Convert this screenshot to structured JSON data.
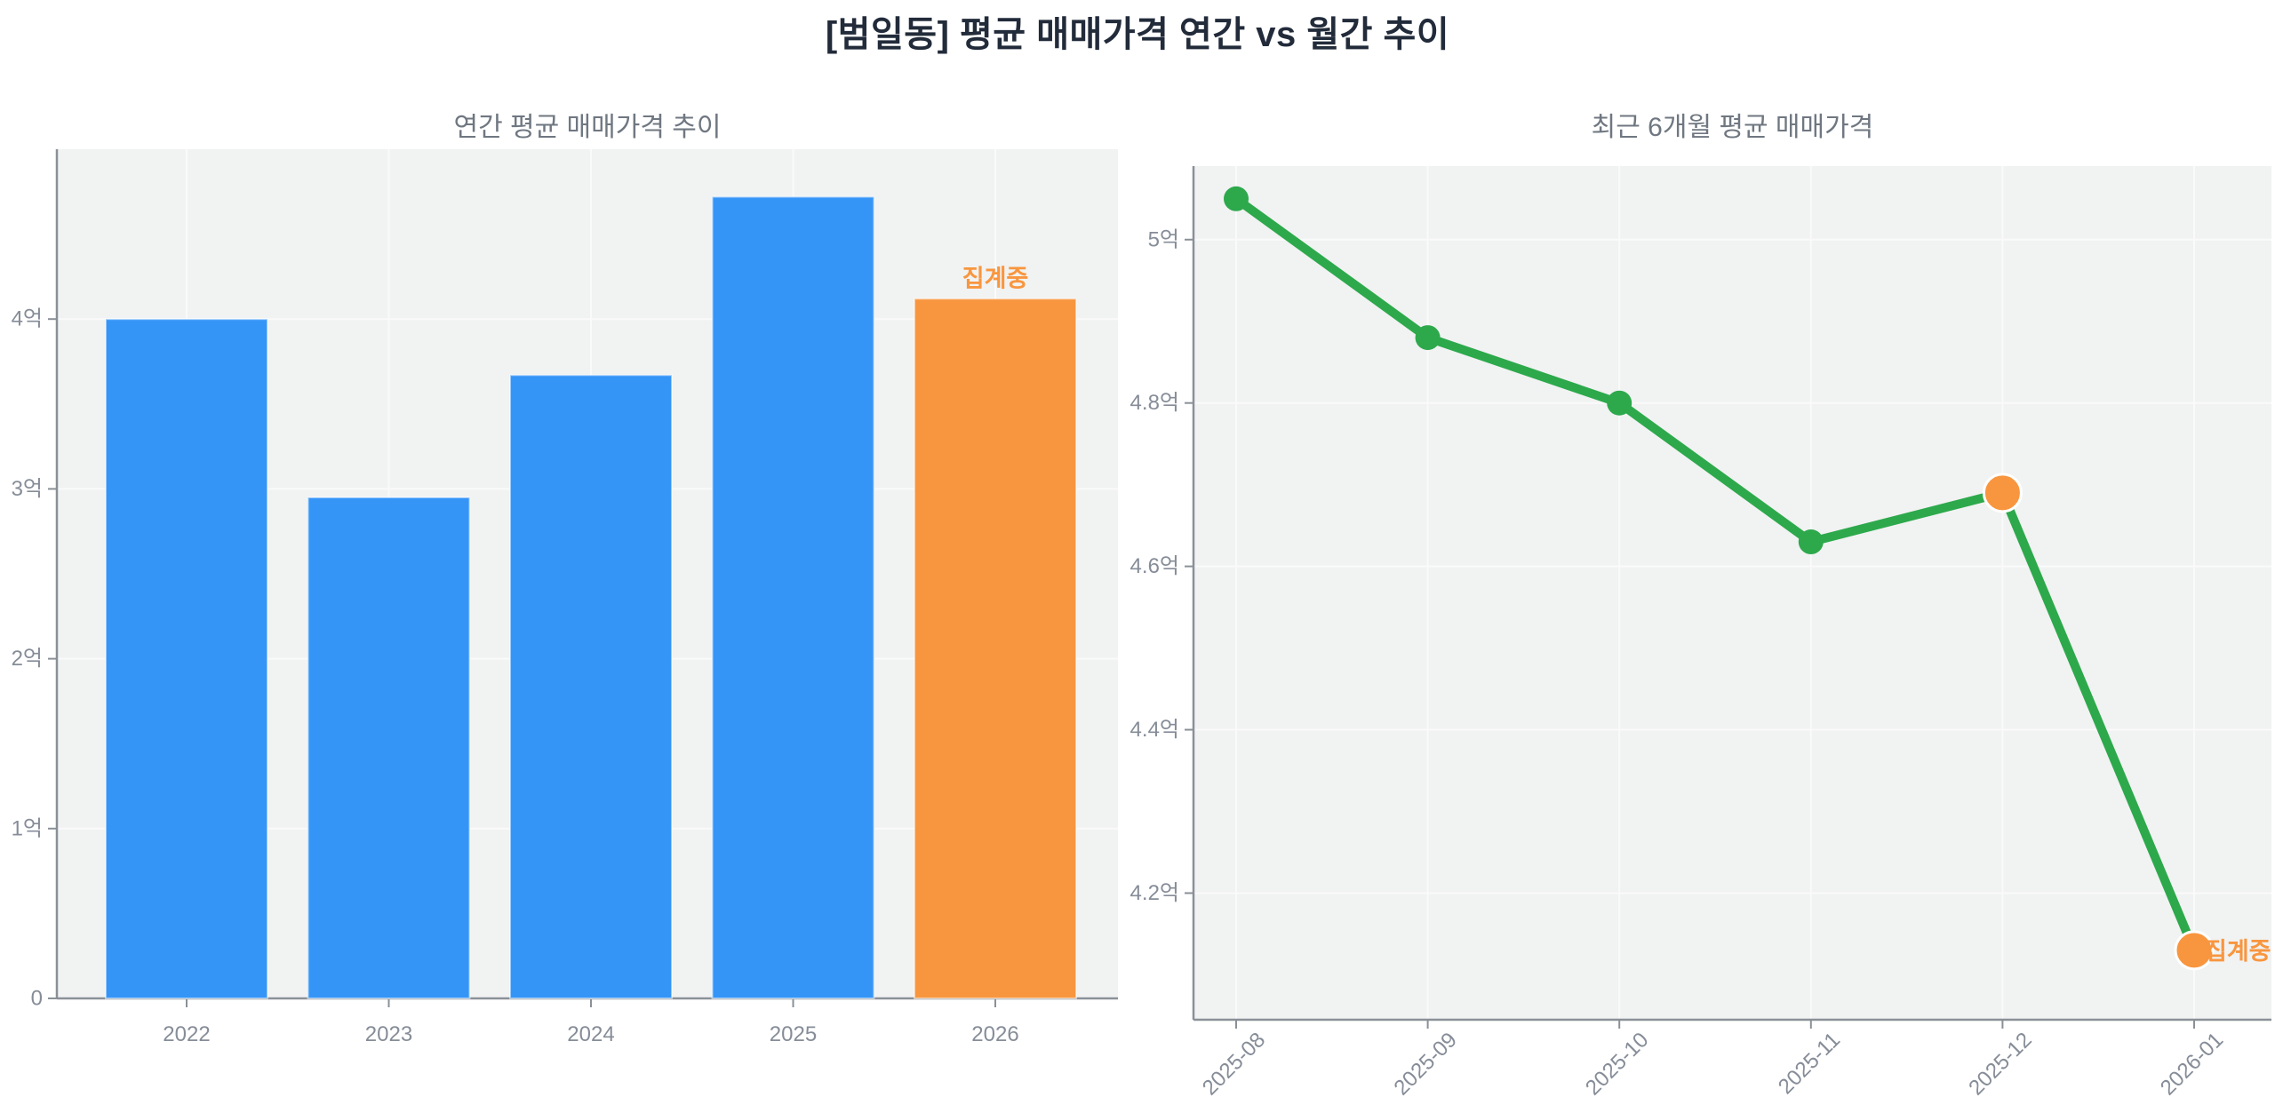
{
  "figure": {
    "title": "[범일동] 평균 매매가격 연간 vs 월간 추이"
  },
  "colors": {
    "bar_blue": "#3595f7",
    "accent_orange": "#f8963f",
    "line_green": "#2da94c",
    "plot_bg": "#f1f2f2",
    "grid": "#fafafa",
    "spine": "#8a9097",
    "tick_text": "#868d98",
    "subtitle_text": "#6f7781",
    "title_text": "#222b3a"
  },
  "chart_data": [
    {
      "type": "bar",
      "title": "연간 평균 매매가격 추이",
      "categories": [
        "2022",
        "2023",
        "2024",
        "2025",
        "2026"
      ],
      "values": [
        4.0,
        2.95,
        3.67,
        4.72,
        4.12
      ],
      "unit": "억",
      "bar_colors": [
        "blue",
        "blue",
        "blue",
        "blue",
        "orange"
      ],
      "ytick_values": [
        0,
        1,
        2,
        3,
        4
      ],
      "ytick_labels": [
        "0",
        "1억",
        "2억",
        "3억",
        "4억"
      ],
      "ylim": [
        0,
        5.0
      ],
      "grid": true,
      "legend": "none",
      "annotation": {
        "text": "집계중",
        "target": "2026",
        "position": "above-bar"
      }
    },
    {
      "type": "line",
      "title": "최근 6개월 평균 매매가격",
      "categories": [
        "2025-08",
        "2025-09",
        "2025-10",
        "2025-11",
        "2025-12",
        "2026-01"
      ],
      "values": [
        5.05,
        4.88,
        4.8,
        4.63,
        4.69,
        4.13
      ],
      "unit": "억",
      "point_colors": [
        "green",
        "green",
        "green",
        "green",
        "orange",
        "orange"
      ],
      "ytick_values": [
        4.2,
        4.4,
        4.6,
        4.8,
        5.0
      ],
      "ytick_labels": [
        "4.2억",
        "4.4억",
        "4.6억",
        "4.8억",
        "5억"
      ],
      "ylim": [
        4.045,
        5.09
      ],
      "grid": true,
      "legend": "none",
      "xtick_rotation": 45,
      "annotation": {
        "text": "집계중",
        "target": "2026-01",
        "position": "right-of-point"
      }
    }
  ]
}
